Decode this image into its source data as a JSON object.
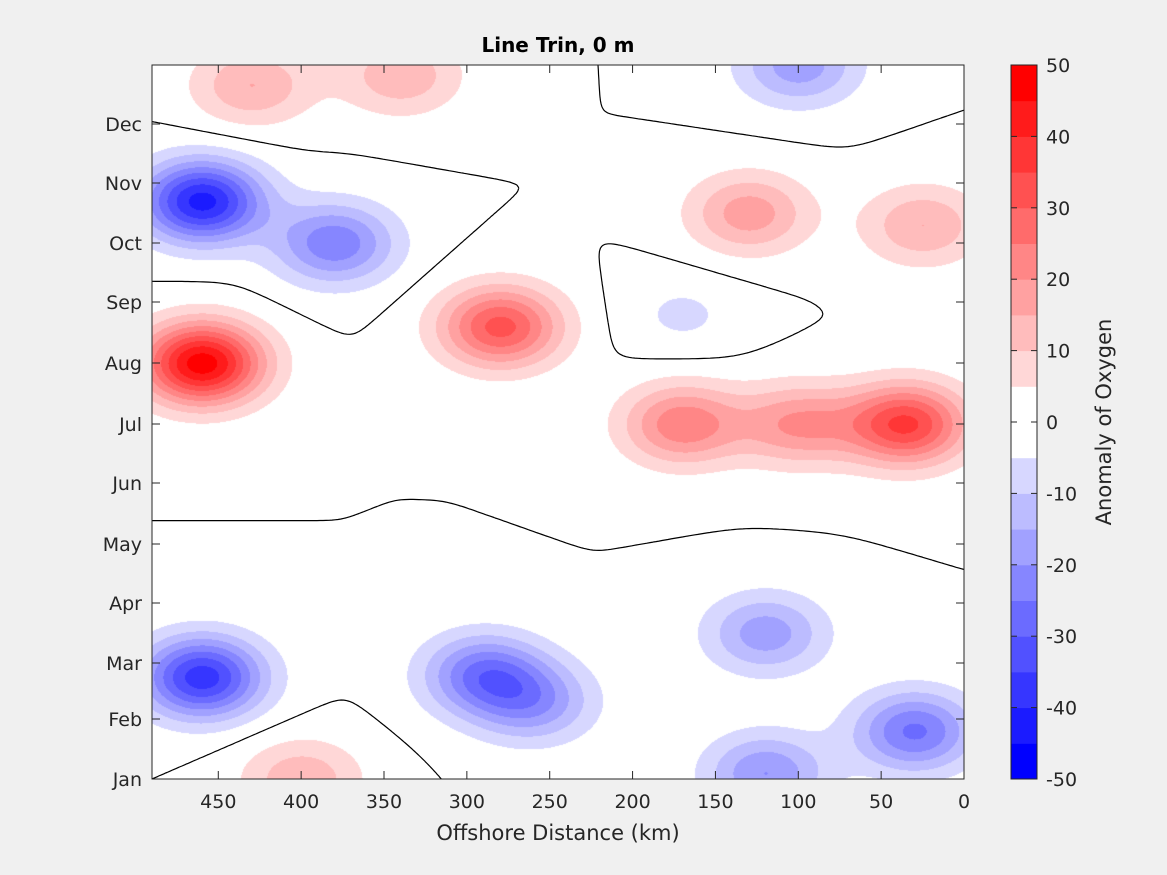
{
  "chart_data": {
    "type": "contour",
    "title": "Line Trin, 0 m",
    "xlabel": "Offshore Distance (km)",
    "colorbar_label": "Anomaly of Oxygen",
    "x_axis": {
      "range": [
        490,
        0
      ],
      "reversed": true,
      "ticks": [
        450,
        400,
        350,
        300,
        250,
        200,
        150,
        100,
        50,
        0
      ]
    },
    "y_axis": {
      "ticks": [
        "Jan",
        "Feb",
        "Mar",
        "Apr",
        "May",
        "Jun",
        "Jul",
        "Aug",
        "Sep",
        "Oct",
        "Nov",
        "Dec"
      ]
    },
    "colorbar": {
      "range": [
        -50,
        50
      ],
      "ticks": [
        -50,
        -40,
        -30,
        -20,
        -10,
        0,
        10,
        20,
        30,
        40,
        50
      ],
      "levels": [
        -50,
        -45,
        -40,
        -35,
        -30,
        -25,
        -20,
        -15,
        -10,
        -5,
        0,
        5,
        10,
        15,
        20,
        25,
        30,
        35,
        40,
        45,
        50
      ],
      "colormap": "blue-white-red",
      "colors": {
        "negative_max": "#0000ff",
        "zero": "#ffffff",
        "positive_max": "#ff0000"
      }
    },
    "zero_contour": {
      "color": "#000000",
      "shown": true
    },
    "features": [
      {
        "x": 460,
        "month": 8.0,
        "value": 48
      },
      {
        "x": 460,
        "month": 10.7,
        "value": -42
      },
      {
        "x": 460,
        "month": 2.75,
        "value": -38
      },
      {
        "x": 430,
        "month": 12.4,
        "value": 15
      },
      {
        "x": 340,
        "month": 12.5,
        "value": 14
      },
      {
        "x": 280,
        "month": 8.6,
        "value": 32
      },
      {
        "x": 170,
        "month": 7.0,
        "value": 24
      },
      {
        "x": 100,
        "month": 7.0,
        "value": 20
      },
      {
        "x": 35,
        "month": 7.0,
        "value": 36
      },
      {
        "x": 130,
        "month": 10.5,
        "value": 18
      },
      {
        "x": 25,
        "month": 10.3,
        "value": 15
      },
      {
        "x": 380,
        "month": 10.0,
        "value": -24
      },
      {
        "x": 290,
        "month": 2.8,
        "value": -25
      },
      {
        "x": 260,
        "month": 2.3,
        "value": -18
      },
      {
        "x": 120,
        "month": 3.5,
        "value": -18
      },
      {
        "x": 30,
        "month": 1.8,
        "value": -26
      },
      {
        "x": 120,
        "month": 1.1,
        "value": -20
      },
      {
        "x": 100,
        "month": 12.6,
        "value": -18
      },
      {
        "x": 400,
        "month": 0.6,
        "value": 14
      },
      {
        "x": 170,
        "month": 8.8,
        "value": -6
      }
    ]
  }
}
